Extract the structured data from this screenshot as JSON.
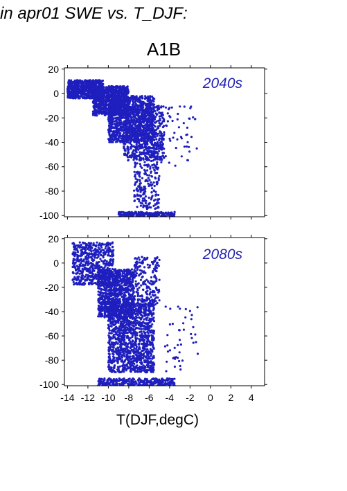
{
  "figure": {
    "title": "in apr01 SWE vs. T_DJF:",
    "scenario": "A1B"
  },
  "colors": {
    "points": "#1f1fbf",
    "period_label": "#2323b4",
    "axis": "#000000"
  },
  "chart_data": [
    {
      "type": "scatter",
      "period": "2040s",
      "xlim": [
        -14.3,
        5.3
      ],
      "ylim": [
        -101,
        21
      ],
      "xticks": [
        -14,
        -12,
        -10,
        -8,
        -6,
        -4,
        -2,
        0,
        2,
        4
      ],
      "yticks": [
        20,
        0,
        -20,
        -40,
        -60,
        -80,
        -100
      ],
      "grid": false,
      "clusters": [
        {
          "x": [
            -14,
            -10.5
          ],
          "y": [
            -4,
            11
          ],
          "n": 700
        },
        {
          "x": [
            -11.5,
            -8
          ],
          "y": [
            -18,
            6
          ],
          "n": 900
        },
        {
          "x": [
            -10,
            -5.5
          ],
          "y": [
            -40,
            -2
          ],
          "n": 1100
        },
        {
          "x": [
            -8.5,
            -4.5
          ],
          "y": [
            -55,
            -10
          ],
          "n": 600
        },
        {
          "x": [
            -7.5,
            -5
          ],
          "y": [
            -95,
            -40
          ],
          "n": 250
        },
        {
          "x": [
            -9,
            -3.5
          ],
          "y": [
            -101,
            -97
          ],
          "n": 220
        },
        {
          "x": [
            -5,
            -1.3
          ],
          "y": [
            -60,
            -10
          ],
          "n": 55
        }
      ]
    },
    {
      "type": "scatter",
      "period": "2080s",
      "xlim": [
        -14.3,
        5.3
      ],
      "ylim": [
        -101,
        21
      ],
      "xticks": [
        -14,
        -12,
        -10,
        -8,
        -6,
        -4,
        -2,
        0,
        2,
        4
      ],
      "yticks": [
        20,
        0,
        -20,
        -40,
        -60,
        -80,
        -100
      ],
      "xlabel": "T(DJF,degC)",
      "grid": false,
      "clusters": [
        {
          "x": [
            -13.5,
            -9.5
          ],
          "y": [
            -18,
            17
          ],
          "n": 550
        },
        {
          "x": [
            -11,
            -7.5
          ],
          "y": [
            -45,
            -5
          ],
          "n": 900
        },
        {
          "x": [
            -10,
            -5.5
          ],
          "y": [
            -90,
            -30
          ],
          "n": 1300
        },
        {
          "x": [
            -11,
            -3.5
          ],
          "y": [
            -101,
            -95
          ],
          "n": 320
        },
        {
          "x": [
            -7.5,
            -5
          ],
          "y": [
            -35,
            5
          ],
          "n": 200
        },
        {
          "x": [
            -4.5,
            -1.2
          ],
          "y": [
            -90,
            -35
          ],
          "n": 45
        }
      ]
    }
  ]
}
